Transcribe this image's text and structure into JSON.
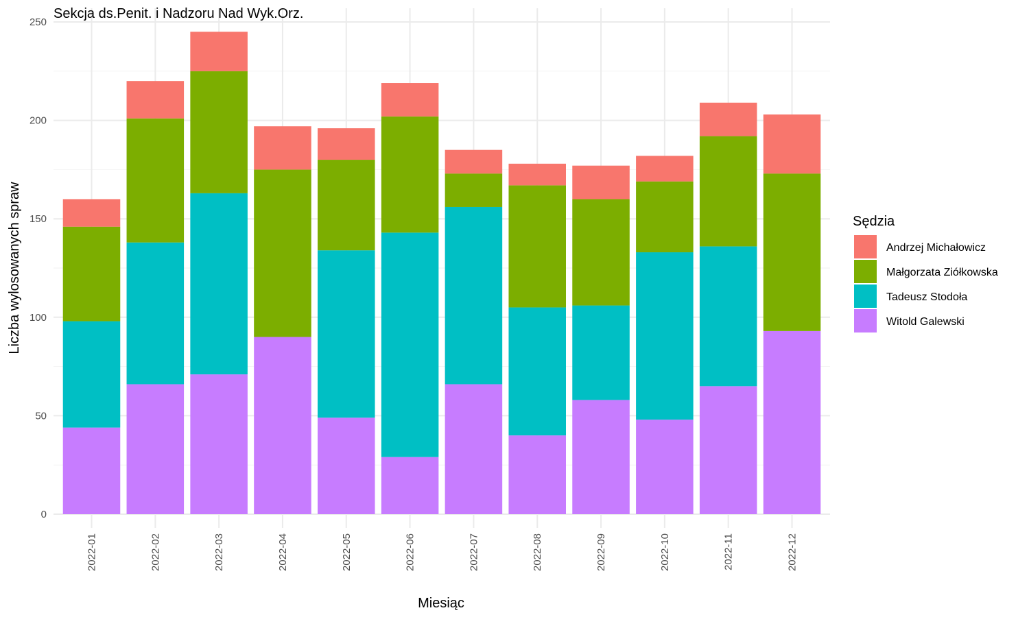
{
  "chart_data": {
    "type": "bar",
    "stacked": true,
    "title": "Sekcja ds.Penit. i Nadzoru Nad Wyk.Orz.",
    "xlabel": "Miesiąc",
    "ylabel": "Liczba wylosowanych spraw",
    "ylim": [
      0,
      250
    ],
    "yticks": [
      0,
      50,
      100,
      150,
      200,
      250
    ],
    "grid": true,
    "legend_title": "Sędzia",
    "legend_position": "right",
    "categories": [
      "2022-01",
      "2022-02",
      "2022-03",
      "2022-04",
      "2022-05",
      "2022-06",
      "2022-07",
      "2022-08",
      "2022-09",
      "2022-10",
      "2022-11",
      "2022-12"
    ],
    "series": [
      {
        "name": "Witold Galewski",
        "color": "#C77CFF",
        "values": [
          44,
          66,
          71,
          90,
          49,
          29,
          66,
          40,
          58,
          48,
          65,
          93
        ]
      },
      {
        "name": "Tadeusz Stodoła",
        "color": "#00BFC4",
        "values": [
          54,
          72,
          92,
          0,
          85,
          114,
          90,
          65,
          48,
          85,
          71,
          0
        ]
      },
      {
        "name": "Małgorzata Ziółkowska",
        "color": "#7CAE00",
        "values": [
          48,
          63,
          62,
          85,
          46,
          59,
          17,
          62,
          54,
          36,
          56,
          80
        ]
      },
      {
        "name": "Andrzej Michałowicz",
        "color": "#F8766D",
        "values": [
          14,
          19,
          20,
          22,
          16,
          17,
          12,
          11,
          17,
          13,
          17,
          30
        ]
      }
    ],
    "legend_order": [
      "Andrzej Michałowicz",
      "Małgorzata Ziółkowska",
      "Tadeusz Stodoła",
      "Witold Galewski"
    ]
  }
}
